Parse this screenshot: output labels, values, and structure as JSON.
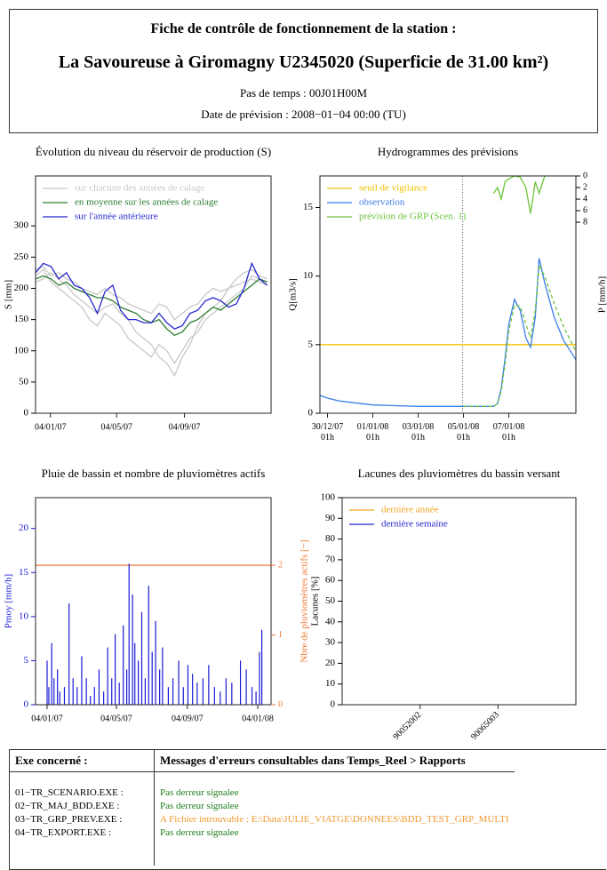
{
  "header": {
    "line1": "Fiche de contrôle de fonctionnement de la station :",
    "line2": "La Savoureuse à Giromagny  U2345020 (Superficie de 31.00 km²)",
    "line3": "Pas de temps : 00J01H00M",
    "line4": "Date de prévision : 2008−01−04 00:00 (TU)"
  },
  "chart_data": [
    {
      "type": "line",
      "title": "Évolution du niveau du réservoir de production (S)",
      "ylabel": "S [mm]",
      "legend": "top-left",
      "xlim": [
        -27,
        400
      ],
      "xticks": [
        {
          "value": 0,
          "label": "04/01/07"
        },
        {
          "value": 120,
          "label": "04/05/07"
        },
        {
          "value": 243,
          "label": "04/09/07"
        }
      ],
      "ylim": [
        0,
        380
      ],
      "yticks": [
        0,
        50,
        100,
        150,
        200,
        250,
        300
      ],
      "x": [
        -27,
        -13,
        1,
        15,
        29,
        43,
        57,
        71,
        85,
        99,
        113,
        127,
        141,
        155,
        169,
        183,
        197,
        211,
        225,
        239,
        253,
        267,
        281,
        295,
        309,
        323,
        337,
        351,
        365,
        379,
        393
      ],
      "series": [
        {
          "name": "sur chacune des années de calage",
          "color": "#c8c8c8",
          "lines": [
            [
              220,
              230,
              210,
              200,
              190,
              180,
              170,
              150,
              140,
              160,
              150,
              140,
              120,
              110,
              100,
              90,
              110,
              100,
              80,
              100,
              120,
              130,
              150,
              160,
              170,
              180,
              190,
              200,
              220,
              215,
              210
            ],
            [
              210,
              215,
              225,
              215,
              205,
              190,
              180,
              170,
              160,
              170,
              175,
              160,
              150,
              130,
              120,
              110,
              90,
              80,
              60,
              90,
              110,
              140,
              160,
              170,
              180,
              200,
              205,
              210,
              215,
              210,
              205
            ],
            [
              230,
              235,
              220,
              225,
              215,
              210,
              200,
              195,
              190,
              200,
              190,
              185,
              175,
              170,
              165,
              160,
              175,
              170,
              150,
              160,
              170,
              175,
              190,
              200,
              195,
              200,
              215,
              225,
              230,
              220,
              215
            ]
          ]
        },
        {
          "name": "en moyenne sur les années de calage",
          "color": "#2e7d32",
          "values": [
            215,
            220,
            215,
            205,
            210,
            200,
            195,
            190,
            185,
            185,
            180,
            170,
            165,
            160,
            150,
            145,
            150,
            135,
            125,
            130,
            145,
            150,
            160,
            170,
            165,
            175,
            185,
            195,
            205,
            215,
            210
          ]
        },
        {
          "name": "sur l'année antérieure",
          "color": "#2828d0",
          "values": [
            225,
            240,
            235,
            215,
            225,
            205,
            200,
            185,
            160,
            195,
            205,
            165,
            150,
            150,
            145,
            145,
            160,
            145,
            135,
            140,
            160,
            165,
            180,
            185,
            180,
            170,
            175,
            200,
            240,
            215,
            205
          ]
        }
      ]
    },
    {
      "type": "line",
      "title": "Hydrogrammes des prévisions",
      "ylabel": "Q[m3/s]",
      "y2label": "P [mm/h]",
      "legend": "top-left",
      "xlim": [
        -8,
        263
      ],
      "xticks": [
        {
          "value": 0,
          "label": "30/12/07 01h"
        },
        {
          "value": 48,
          "label": "01/01/08 01h"
        },
        {
          "value": 96,
          "label": "03/01/08 01h"
        },
        {
          "value": 144,
          "label": "05/01/08 01h"
        },
        {
          "value": 192,
          "label": "07/01/08 01h"
        }
      ],
      "ylim": [
        0,
        17.3
      ],
      "yticks": [
        0,
        5,
        10,
        15
      ],
      "y2lim": [
        0,
        41
      ],
      "y2_reversed": true,
      "y2ticks": [
        0,
        2,
        4,
        6,
        8
      ],
      "forecast_x": 143,
      "x": [
        -8,
        0,
        12,
        24,
        48,
        72,
        96,
        120,
        144,
        168,
        176,
        180,
        184,
        188,
        192,
        198,
        204,
        210,
        215,
        220,
        224,
        230,
        240,
        250,
        263
      ],
      "series": [
        {
          "name": "seuil de vigilance",
          "color": "#f2c200",
          "level": 5
        },
        {
          "name": "observation",
          "color": "#3a7ee6",
          "values": [
            1.3,
            1.1,
            0.9,
            0.8,
            0.6,
            0.55,
            0.5,
            0.5,
            0.5,
            0.5,
            0.5,
            0.7,
            1.8,
            4,
            6.5,
            8.3,
            7.5,
            5.5,
            4.8,
            7,
            11.3,
            9.5,
            7,
            5.3,
            3.9
          ]
        },
        {
          "name": "prévision de GRP (Scen. 1)",
          "color": "#6cc33a",
          "dashed": true,
          "values": [
            null,
            null,
            null,
            null,
            null,
            null,
            null,
            null,
            0.5,
            0.5,
            0.5,
            0.7,
            1.6,
            3.6,
            6,
            7.9,
            7.8,
            6.5,
            5.5,
            7.5,
            10.8,
            10,
            8,
            6.3,
            4.5
          ]
        },
        {
          "color": "#6cc33a",
          "axis": "y2",
          "values": [
            null,
            null,
            null,
            null,
            null,
            null,
            null,
            null,
            null,
            null,
            3,
            2,
            4,
            1,
            0.5,
            0,
            0.2,
            2,
            6.5,
            1,
            3,
            0,
            null,
            null,
            null
          ]
        }
      ]
    },
    {
      "type": "bar",
      "title": "Pluie de bassin et nombre de pluviomètres actifs",
      "ylabel": "Pmoy [mm/h]",
      "ylabel_color": "#1a1ad6",
      "y2label": "Nbre de pluviomètres actifs [−]",
      "y2label_color": "#f07830",
      "xlim": [
        -20,
        388
      ],
      "xticks": [
        {
          "value": 0,
          "label": "04/01/07"
        },
        {
          "value": 120,
          "label": "04/05/07"
        },
        {
          "value": 243,
          "label": "04/09/07"
        },
        {
          "value": 365,
          "label": "04/01/08"
        }
      ],
      "ylim": [
        0,
        23.5
      ],
      "yticks": [
        0,
        5,
        10,
        15,
        20
      ],
      "y2lim": [
        0,
        2.97
      ],
      "y2ticks": [
        0,
        1,
        2
      ],
      "series": [
        {
          "color": "#f07830",
          "axis": "y2",
          "level": 2
        },
        {
          "kind": "bar",
          "color": "#1a1ad6",
          "x": [
            0,
            3,
            8,
            12,
            18,
            22,
            30,
            38,
            45,
            52,
            60,
            68,
            75,
            82,
            90,
            98,
            105,
            112,
            118,
            125,
            132,
            138,
            142,
            148,
            152,
            158,
            164,
            170,
            176,
            182,
            188,
            195,
            200,
            210,
            218,
            228,
            236,
            244,
            252,
            260,
            270,
            280,
            290,
            300,
            310,
            320,
            335,
            345,
            355,
            362,
            368,
            372
          ],
          "values": [
            5,
            2,
            7,
            3,
            4,
            1.5,
            2,
            11.5,
            3,
            2,
            5.5,
            3,
            1,
            2,
            4,
            1.5,
            6.5,
            3,
            8,
            2.5,
            9,
            4,
            16,
            12.5,
            7,
            5,
            10.5,
            3,
            13.5,
            6,
            9.5,
            4,
            6.5,
            2,
            3,
            5,
            2,
            4.5,
            3.5,
            2.5,
            3,
            4.5,
            2,
            1.5,
            3,
            2.5,
            5,
            4,
            2,
            1.5,
            6,
            8.5
          ]
        }
      ]
    },
    {
      "type": "line",
      "title": "Lacunes des pluviomètres du bassin versant",
      "ylabel": "Lacunes [%]",
      "legend": "top-left",
      "categories": [
        "90052002",
        "90065003"
      ],
      "ylim": [
        0,
        100
      ],
      "yticks": [
        0,
        10,
        20,
        30,
        40,
        50,
        60,
        70,
        80,
        90,
        100
      ],
      "series": [
        {
          "name": "dernière année",
          "color": "#f5a623",
          "values": [
            null,
            null
          ]
        },
        {
          "name": "dernière semaine",
          "color": "#2828d0",
          "values": [
            null,
            null
          ]
        }
      ]
    }
  ],
  "table": {
    "headers": [
      "Exe concerné :",
      "Messages d'erreurs consultables dans Temps_Reel > Rapports"
    ],
    "rows": [
      [
        "01−TR_SCENARIO.EXE :",
        "Pas derreur signalee"
      ],
      [
        "02−TR_MAJ_BDD.EXE :",
        "Pas derreur signalee"
      ],
      [
        "03−TR_GRP_PREV.EXE :",
        "A Fichier introuvable : E:\\Data\\JULIE_VIATGE\\DONNEES\\BDD_TEST_GRP_MULTI"
      ],
      [
        "04−TR_EXPORT.EXE :",
        "Pas derreur signalee"
      ]
    ],
    "message_colors": [
      "#1e7d1e",
      "#1e7d1e",
      "#f29a2e",
      "#1e7d1e"
    ]
  }
}
